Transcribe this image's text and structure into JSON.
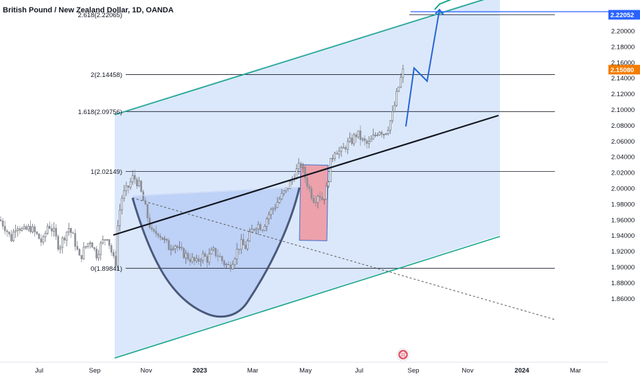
{
  "chart_title": "British Pound / New Zealand Dollar, 1D, OANDA",
  "colors": {
    "up": "#26a69a",
    "down": "#ef5350",
    "candle": "#6b6f77",
    "channel_line": "#17a589",
    "channel_fill": "#dbe8fb",
    "cup_fill": "#b8ccf5",
    "cup_stroke": "#3c4a6b",
    "projection": "#2563d6",
    "trend": "#131722",
    "rect_fill": "#eca1ab",
    "rect_stroke": "#3f6fd1",
    "badge_blue": "#2962ff",
    "badge_orange": "#f57c00"
  },
  "chart_data": {
    "type": "candlestick",
    "symbol": "British Pound / New Zealand Dollar",
    "timeframe": "1D",
    "source": "OANDA",
    "y_range": [
      1.855,
      2.225
    ],
    "y_ticks": [
      "1.86000",
      "1.88000",
      "1.90000",
      "1.92000",
      "1.94000",
      "1.96000",
      "1.98000",
      "2.00000",
      "2.02000",
      "2.04000",
      "2.06000",
      "2.08000",
      "2.10000",
      "2.12000",
      "2.14000",
      "2.16000",
      "2.18000",
      "2.20000"
    ],
    "x_ticks": [
      {
        "label": "Jul",
        "bold": false
      },
      {
        "label": "Sep",
        "bold": false
      },
      {
        "label": "Nov",
        "bold": false
      },
      {
        "label": "2023",
        "bold": true
      },
      {
        "label": "Mar",
        "bold": false
      },
      {
        "label": "May",
        "bold": false
      },
      {
        "label": "Jul",
        "bold": false
      },
      {
        "label": "Sep",
        "bold": false
      },
      {
        "label": "Nov",
        "bold": false
      },
      {
        "label": "2024",
        "bold": true
      },
      {
        "label": "Mar",
        "bold": false
      }
    ],
    "fib_levels": [
      {
        "label": "0(1.89841)",
        "value": 1.89841
      },
      {
        "label": "1(2.02149)",
        "value": 2.02149
      },
      {
        "label": "1.618(2.09756)",
        "value": 2.09756
      },
      {
        "label": "2(2.14458)",
        "value": 2.14458
      },
      {
        "label": "2.618(2.22065)",
        "value": 2.22065
      }
    ],
    "price_badges": [
      {
        "label": "2.22052",
        "value": 2.22052,
        "color": "blue"
      },
      {
        "label": "2.15080",
        "value": 2.1508,
        "color": "orange"
      }
    ],
    "price_path": [
      [
        0,
        1.96
      ],
      [
        8,
        1.95
      ],
      [
        16,
        1.935
      ],
      [
        24,
        1.955
      ],
      [
        34,
        1.945
      ],
      [
        44,
        1.95
      ],
      [
        54,
        1.94
      ],
      [
        62,
        1.93
      ],
      [
        70,
        1.955
      ],
      [
        78,
        1.945
      ],
      [
        86,
        1.925
      ],
      [
        94,
        1.94
      ],
      [
        100,
        1.95
      ],
      [
        108,
        1.935
      ],
      [
        116,
        1.91
      ],
      [
        124,
        1.925
      ],
      [
        132,
        1.935
      ],
      [
        140,
        1.915
      ],
      [
        148,
        1.93
      ],
      [
        156,
        1.94
      ],
      [
        162,
        1.92
      ],
      [
        168,
        1.9
      ],
      [
        172,
        1.96
      ],
      [
        178,
        1.99
      ],
      [
        186,
        2.0
      ],
      [
        194,
        2.015
      ],
      [
        202,
        2.005
      ],
      [
        210,
        1.98
      ],
      [
        216,
        1.96
      ],
      [
        222,
        1.94
      ],
      [
        230,
        1.945
      ],
      [
        238,
        1.935
      ],
      [
        246,
        1.925
      ],
      [
        254,
        1.93
      ],
      [
        262,
        1.92
      ],
      [
        270,
        1.915
      ],
      [
        278,
        1.91
      ],
      [
        286,
        1.905
      ],
      [
        294,
        1.915
      ],
      [
        302,
        1.91
      ],
      [
        310,
        1.92
      ],
      [
        318,
        1.915
      ],
      [
        326,
        1.905
      ],
      [
        334,
        1.9
      ],
      [
        342,
        1.915
      ],
      [
        350,
        1.93
      ],
      [
        358,
        1.925
      ],
      [
        366,
        1.945
      ],
      [
        374,
        1.955
      ],
      [
        382,
        1.95
      ],
      [
        390,
        1.965
      ],
      [
        398,
        1.975
      ],
      [
        406,
        1.985
      ],
      [
        414,
        1.995
      ],
      [
        422,
        2.005
      ],
      [
        430,
        2.02
      ],
      [
        438,
        2.03
      ],
      [
        446,
        2.01
      ],
      [
        452,
        1.995
      ],
      [
        458,
        1.985
      ],
      [
        464,
        1.995
      ],
      [
        470,
        1.985
      ],
      [
        476,
        2.0
      ],
      [
        482,
        2.035
      ],
      [
        488,
        2.05
      ],
      [
        496,
        2.045
      ],
      [
        504,
        2.055
      ],
      [
        512,
        2.06
      ],
      [
        520,
        2.07
      ],
      [
        528,
        2.06
      ],
      [
        536,
        2.055
      ],
      [
        544,
        2.065
      ],
      [
        552,
        2.075
      ],
      [
        560,
        2.07
      ],
      [
        566,
        2.08
      ],
      [
        572,
        2.095
      ],
      [
        578,
        2.12
      ],
      [
        584,
        2.14
      ],
      [
        588,
        2.151
      ]
    ]
  }
}
